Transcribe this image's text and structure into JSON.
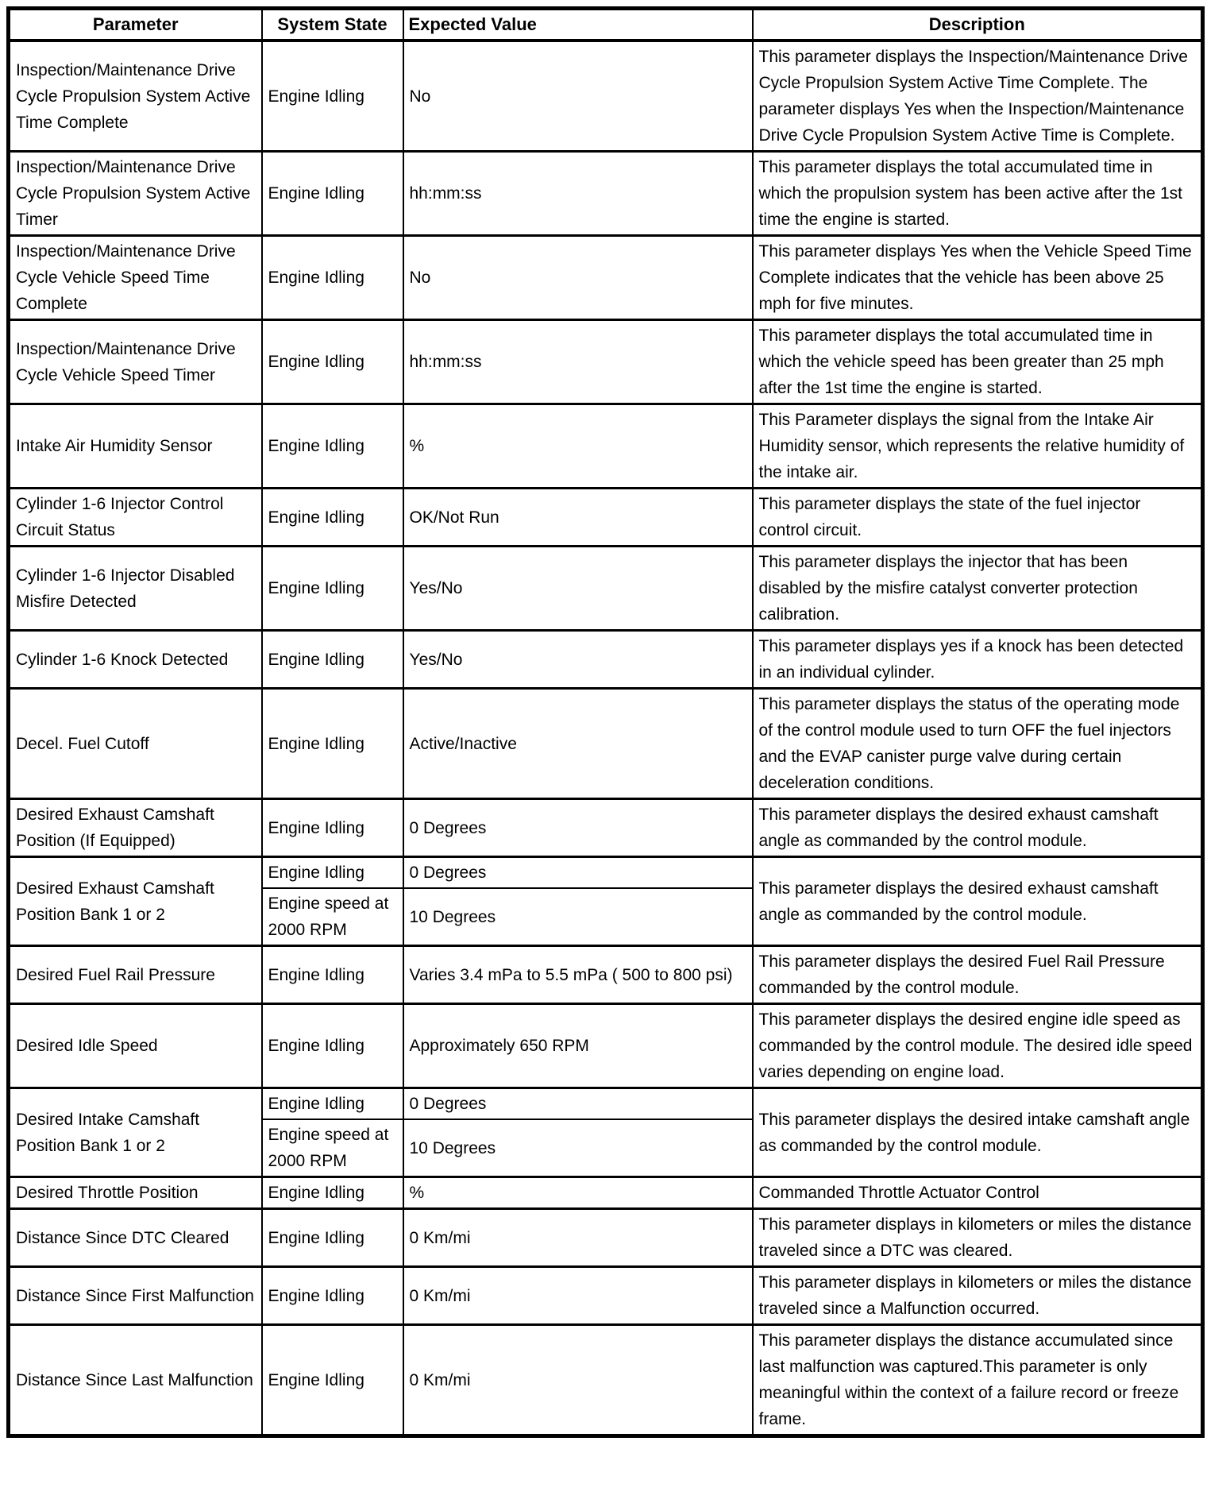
{
  "table": {
    "headers": [
      {
        "key": "parameter",
        "label": "Parameter"
      },
      {
        "key": "system-state",
        "label": "System State"
      },
      {
        "key": "expected-value",
        "label": "Expected Value"
      },
      {
        "key": "description",
        "label": "Description"
      }
    ],
    "rows": [
      {
        "parameter": "Inspection/Maintenance Drive Cycle Propulsion System Active Time Complete",
        "conditions": [
          {
            "system_state": "Engine Idling",
            "expected_value": "No"
          }
        ],
        "description": "This parameter displays the Inspection/Maintenance Drive Cycle Propulsion System Active Time Complete. The parameter displays Yes when the Inspection/Maintenance Drive Cycle Propulsion System Active Time is Complete."
      },
      {
        "parameter": "Inspection/Maintenance Drive Cycle Propulsion System Active Timer",
        "conditions": [
          {
            "system_state": "Engine Idling",
            "expected_value": "hh:mm:ss"
          }
        ],
        "description": "This parameter displays the total accumulated time in which the propulsion system has been active after the 1st time the engine is started."
      },
      {
        "parameter": "Inspection/Maintenance Drive Cycle Vehicle Speed Time Complete",
        "conditions": [
          {
            "system_state": "Engine Idling",
            "expected_value": "No"
          }
        ],
        "description": "This parameter displays Yes when the Vehicle Speed Time Complete indicates that the vehicle has been above 25 mph for five minutes."
      },
      {
        "parameter": "Inspection/Maintenance Drive Cycle Vehicle Speed Timer",
        "conditions": [
          {
            "system_state": "Engine Idling",
            "expected_value": "hh:mm:ss"
          }
        ],
        "description": "This parameter displays the total accumulated time in which the vehicle speed has been greater than 25 mph after the 1st time the engine is started."
      },
      {
        "parameter": "Intake Air Humidity Sensor",
        "conditions": [
          {
            "system_state": "Engine Idling",
            "expected_value": "%"
          }
        ],
        "description": "This Parameter displays the signal from the Intake Air Humidity sensor, which represents the relative humidity of the intake air."
      },
      {
        "parameter": "Cylinder 1-6 Injector Control Circuit Status",
        "conditions": [
          {
            "system_state": "Engine Idling",
            "expected_value": "OK/Not Run"
          }
        ],
        "description": "This parameter displays the state of the fuel injector control circuit."
      },
      {
        "parameter": "Cylinder 1-6 Injector Disabled Misfire Detected",
        "conditions": [
          {
            "system_state": "Engine Idling",
            "expected_value": "Yes/No"
          }
        ],
        "description": "This parameter displays the injector that has been disabled by the misfire catalyst converter protection calibration."
      },
      {
        "parameter": "Cylinder 1-6 Knock Detected",
        "conditions": [
          {
            "system_state": "Engine Idling",
            "expected_value": "Yes/No"
          }
        ],
        "description": "This parameter displays yes if a knock has been detected in an individual cylinder."
      },
      {
        "parameter": "Decel. Fuel Cutoff",
        "conditions": [
          {
            "system_state": "Engine Idling",
            "expected_value": "Active/Inactive"
          }
        ],
        "description": "This parameter displays the status of the operating mode of the control module used to turn OFF the fuel injectors and the EVAP canister purge valve during certain deceleration conditions."
      },
      {
        "parameter": "Desired Exhaust Camshaft Position (If Equipped)",
        "conditions": [
          {
            "system_state": "Engine Idling",
            "expected_value": "0 Degrees"
          }
        ],
        "description": "This parameter displays the desired exhaust camshaft angle as commanded by the control module."
      },
      {
        "parameter": "Desired Exhaust Camshaft Position Bank 1 or 2",
        "conditions": [
          {
            "system_state": "Engine Idling",
            "expected_value": "0 Degrees"
          },
          {
            "system_state": "Engine speed at 2000 RPM",
            "expected_value": "10 Degrees"
          }
        ],
        "description": "This parameter displays the desired exhaust camshaft angle as commanded by the control module."
      },
      {
        "parameter": "Desired Fuel Rail Pressure",
        "conditions": [
          {
            "system_state": "Engine Idling",
            "expected_value": "Varies 3.4 mPa to 5.5 mPa ( 500 to 800 psi)"
          }
        ],
        "description": "This parameter displays the desired Fuel Rail Pressure commanded by the control module."
      },
      {
        "parameter": "Desired Idle Speed",
        "conditions": [
          {
            "system_state": "Engine Idling",
            "expected_value": "Approximately 650 RPM"
          }
        ],
        "description": "This parameter displays the desired engine idle speed as commanded by the control module. The desired idle speed varies depending on engine load."
      },
      {
        "parameter": "Desired Intake Camshaft Position Bank 1 or 2",
        "conditions": [
          {
            "system_state": "Engine Idling",
            "expected_value": "0 Degrees"
          },
          {
            "system_state": "Engine speed at 2000 RPM",
            "expected_value": "10 Degrees"
          }
        ],
        "description": "This parameter displays the desired intake camshaft angle as commanded by the control module."
      },
      {
        "parameter": "Desired Throttle Position",
        "conditions": [
          {
            "system_state": "Engine Idling",
            "expected_value": "%"
          }
        ],
        "description": "Commanded Throttle Actuator Control"
      },
      {
        "parameter": "Distance Since DTC Cleared",
        "conditions": [
          {
            "system_state": "Engine Idling",
            "expected_value": "0 Km/mi"
          }
        ],
        "description": "This parameter displays in kilometers or miles the distance traveled since a DTC was cleared."
      },
      {
        "parameter": "Distance Since First Malfunction",
        "conditions": [
          {
            "system_state": "Engine Idling",
            "expected_value": "0 Km/mi"
          }
        ],
        "description": "This parameter displays in kilometers or miles the distance traveled since a Malfunction occurred."
      },
      {
        "parameter": "Distance Since Last Malfunction",
        "conditions": [
          {
            "system_state": "Engine Idling",
            "expected_value": "0 Km/mi"
          }
        ],
        "description": "This parameter displays the distance accumulated since last malfunction was captured.This parameter is only meaningful within the context of a failure record or freeze frame."
      }
    ]
  }
}
